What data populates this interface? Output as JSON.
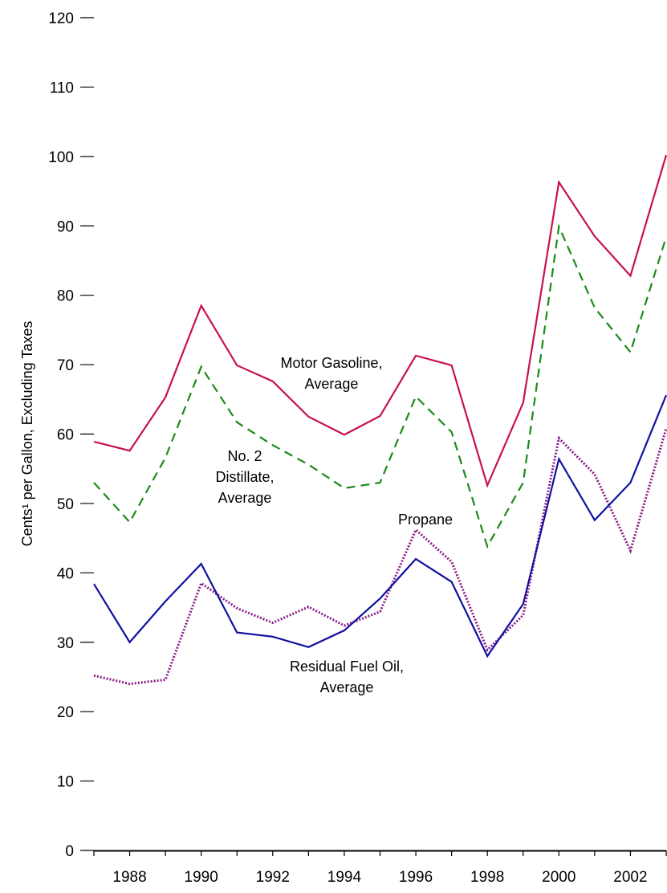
{
  "chart_data": {
    "type": "line",
    "ylabel": "Cents¹ per Gallon, Excluding Taxes",
    "xlabel": "",
    "ylim": [
      0,
      120
    ],
    "xlim": [
      1987,
      2003
    ],
    "yticks": [
      0,
      10,
      20,
      30,
      40,
      50,
      60,
      70,
      80,
      90,
      100,
      110,
      120
    ],
    "xtick_labels": [
      "1988",
      "1990",
      "1992",
      "1994",
      "1996",
      "1998",
      "2000",
      "2002"
    ],
    "x": [
      1987,
      1988,
      1989,
      1990,
      1991,
      1992,
      1993,
      1994,
      1995,
      1996,
      1997,
      1998,
      1999,
      2000,
      2001,
      2002,
      2003
    ],
    "grid": false,
    "series": [
      {
        "name": "Motor Gasoline, Average",
        "color": "#c8104e",
        "style": "solid",
        "values": [
          58.9,
          57.6,
          65.3,
          78.5,
          69.9,
          67.6,
          62.5,
          59.9,
          62.6,
          71.3,
          69.9,
          52.6,
          64.5,
          96.3,
          88.5,
          82.8,
          100.2
        ]
      },
      {
        "name": "No. 2 Distillate, Average",
        "color": "#1a8a1a",
        "style": "dashed",
        "values": [
          53.0,
          47.3,
          56.6,
          69.7,
          61.7,
          58.4,
          55.6,
          52.2,
          53.0,
          65.4,
          60.3,
          43.8,
          53.0,
          89.9,
          78.2,
          71.8,
          88.4
        ]
      },
      {
        "name": "Propane",
        "color": "#8a1a8a",
        "style": "dotted",
        "values": [
          25.2,
          24.0,
          24.6,
          38.5,
          34.9,
          32.8,
          35.1,
          32.4,
          34.4,
          46.2,
          41.6,
          28.9,
          33.9,
          59.4,
          54.2,
          43.2,
          60.8
        ]
      },
      {
        "name": "Residual Fuel Oil, Average",
        "color": "#1010a0",
        "style": "solid",
        "values": [
          38.4,
          30.0,
          35.9,
          41.3,
          31.4,
          30.8,
          29.3,
          31.7,
          36.3,
          42.0,
          38.7,
          28.0,
          35.5,
          56.4,
          47.6,
          53.0,
          65.6
        ]
      }
    ],
    "annotations": [
      {
        "lines": [
          "Motor Gasoline,",
          "Average"
        ],
        "series": "Motor Gasoline, Average"
      },
      {
        "lines": [
          "No. 2",
          "Distillate,",
          "Average"
        ],
        "series": "No. 2 Distillate, Average"
      },
      {
        "lines": [
          "Propane"
        ],
        "series": "Propane"
      },
      {
        "lines": [
          "Residual Fuel Oil,",
          "Average"
        ],
        "series": "Residual Fuel Oil, Average"
      }
    ]
  }
}
